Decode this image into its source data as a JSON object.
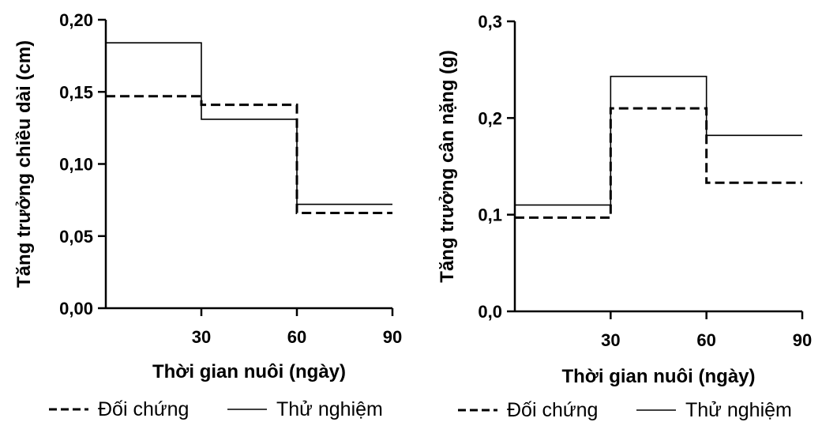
{
  "chart_data": [
    {
      "type": "line",
      "step": true,
      "xlabel": "Thời gian nuôi (ngày)",
      "ylabel": "Tăng trưởng chiều dài (cm)",
      "xlim": [
        0,
        90
      ],
      "ylim": [
        0,
        0.2
      ],
      "xticks": [
        30,
        60,
        90
      ],
      "xtick_labels": [
        "30",
        "60",
        "90"
      ],
      "yticks": [
        0,
        0.05,
        0.1,
        0.15,
        0.2
      ],
      "ytick_labels": [
        "0,00",
        "0,05",
        "0,10",
        "0,15",
        "0,20"
      ],
      "grid": false,
      "legend": "bottom",
      "series": [
        {
          "name": "Đối chứng",
          "style": "dashed",
          "x": [
            0,
            30,
            60,
            90
          ],
          "values": [
            0.147,
            0.141,
            0.066,
            0.066
          ]
        },
        {
          "name": "Thử nghiệm",
          "style": "solid",
          "x": [
            0,
            30,
            60,
            90
          ],
          "values": [
            0.184,
            0.131,
            0.072,
            0.072
          ]
        }
      ]
    },
    {
      "type": "line",
      "step": true,
      "xlabel": "Thời gian nuôi (ngày)",
      "ylabel": "Tăng trưởng cân nặng (g)",
      "xlim": [
        0,
        90
      ],
      "ylim": [
        0,
        0.3
      ],
      "xticks": [
        30,
        60,
        90
      ],
      "xtick_labels": [
        "30",
        "60",
        "90"
      ],
      "yticks": [
        0,
        0.1,
        0.2,
        0.3
      ],
      "ytick_labels": [
        "0,0",
        "0,1",
        "0,2",
        "0,3"
      ],
      "grid": false,
      "legend": "bottom",
      "series": [
        {
          "name": "Đối chứng",
          "style": "dashed",
          "x": [
            0,
            30,
            60,
            90
          ],
          "values": [
            0.097,
            0.21,
            0.133,
            0.133
          ]
        },
        {
          "name": "Thử nghiệm",
          "style": "solid",
          "x": [
            0,
            30,
            60,
            90
          ],
          "values": [
            0.11,
            0.243,
            0.182,
            0.182
          ]
        }
      ]
    }
  ]
}
